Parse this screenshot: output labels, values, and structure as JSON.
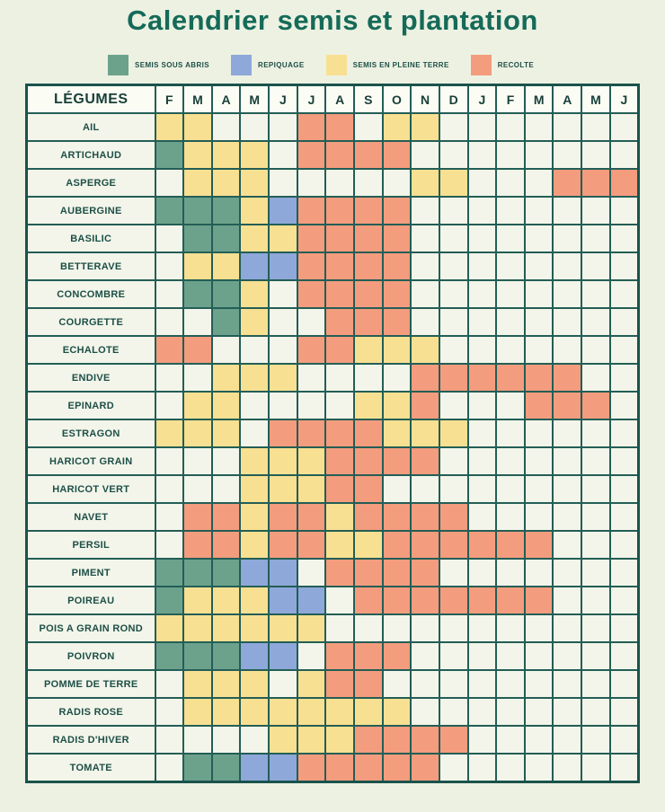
{
  "title": "Calendrier semis et plantation",
  "legend": [
    {
      "label": "SEMIS SOUS ABRIS",
      "key": "G",
      "color": "#6ca28c"
    },
    {
      "label": "REPIQUAGE",
      "key": "B",
      "color": "#8ea8d9"
    },
    {
      "label": "SEMIS EN PLEINE TERRE",
      "key": "Y",
      "color": "#f8e092"
    },
    {
      "label": "RECOLTE",
      "key": "R",
      "color": "#f49c7e"
    }
  ],
  "colors": {
    "G": "#6ca28c",
    "B": "#8ea8d9",
    "Y": "#f8e092",
    "R": "#f49c7e",
    "_": "#f3f5ea",
    "accent_title": "#156a58",
    "grid_border": "#235e56",
    "page_background": "#edf1e2"
  },
  "chart_data": {
    "type": "heatmap",
    "title": "Calendrier semis et plantation",
    "corner_label": "LÉGUMES",
    "months": [
      "F",
      "M",
      "A",
      "M",
      "J",
      "J",
      "A",
      "S",
      "O",
      "N",
      "D",
      "J",
      "F",
      "M",
      "A",
      "M",
      "J"
    ],
    "legend_position": "top",
    "cell_codes": {
      "G": "semis sous abris",
      "B": "repiquage",
      "Y": "semis en pleine terre",
      "R": "recolte",
      "_": "aucun"
    },
    "rows": [
      {
        "label": "AIL",
        "cells": "YY___RR_YY_______"
      },
      {
        "label": "ARTICHAUD",
        "cells": "GYYY_RRRR________"
      },
      {
        "label": "ASPERGE",
        "cells": "_YYY_____YY___RRR"
      },
      {
        "label": "AUBERGINE",
        "cells": "GGGYBRRRR________"
      },
      {
        "label": "BASILIC",
        "cells": "_GGYYRRRR________"
      },
      {
        "label": "BETTERAVE",
        "cells": "_YYBBRRRR________"
      },
      {
        "label": "CONCOMBRE",
        "cells": "_GGY_RRRR________"
      },
      {
        "label": "COURGETTE",
        "cells": "__GY__RRR________"
      },
      {
        "label": "ECHALOTE",
        "cells": "RR___RRYYY_______"
      },
      {
        "label": "ENDIVE",
        "cells": "__YYY____RRRRRR__"
      },
      {
        "label": "EPINARD",
        "cells": "_YY____YYR___RRR_"
      },
      {
        "label": "ESTRAGON",
        "cells": "YYY_RRRRYYY______"
      },
      {
        "label": "HARICOT GRAIN",
        "cells": "___YYYRRRR_______"
      },
      {
        "label": "HARICOT VERT",
        "cells": "___YYYRR_________"
      },
      {
        "label": "NAVET",
        "cells": "_RRYRRYRRRR______"
      },
      {
        "label": "PERSIL",
        "cells": "_RRYRRYYRRRRRR___"
      },
      {
        "label": "PIMENT",
        "cells": "GGGBB_RRRR_______"
      },
      {
        "label": "POIREAU",
        "cells": "GYYYBB_RRRRRRR___"
      },
      {
        "label": "POIS A GRAIN ROND",
        "cells": "YYYYYY___________"
      },
      {
        "label": "POIVRON",
        "cells": "GGGBB_RRR________"
      },
      {
        "label": "POMME DE TERRE",
        "cells": "_YYY_YRR_________"
      },
      {
        "label": "RADIS ROSE",
        "cells": "_YYYYYYYY________"
      },
      {
        "label": "RADIS D'HIVER",
        "cells": "____YYYRRRR______"
      },
      {
        "label": "TOMATE",
        "cells": "_GGBBRRRRR_______"
      }
    ]
  }
}
